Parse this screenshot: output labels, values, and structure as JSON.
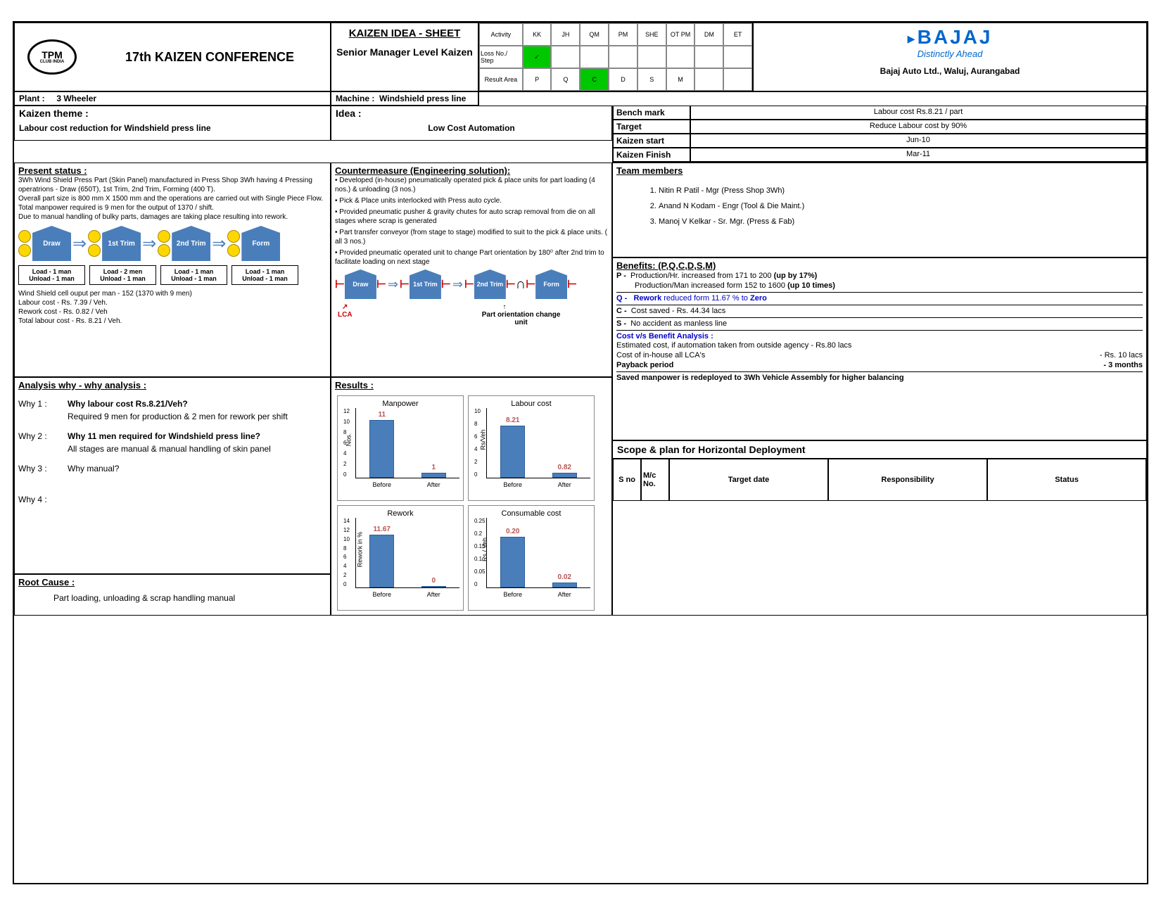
{
  "header": {
    "tpm": {
      "line1": "TPM",
      "line2": "CLUB INDIA"
    },
    "conference": "17th KAIZEN CONFERENCE",
    "sheet_title": "KAIZEN IDEA - SHEET",
    "level": "Senior Manager Level Kaizen",
    "grid": {
      "row1": {
        "label": "Activity",
        "cells": [
          "KK",
          "JH",
          "QM",
          "PM",
          "SHE",
          "OT PM",
          "DM",
          "ET"
        ],
        "highlight": -1
      },
      "row2": {
        "label": "Loss No./ Step",
        "cells": [
          "✓",
          "",
          "",
          "",
          "",
          "",
          "",
          ""
        ],
        "highlight": 0
      },
      "row3": {
        "label": "Result Area",
        "cells": [
          "P",
          "Q",
          "C",
          "D",
          "S",
          "M",
          "",
          ""
        ],
        "highlight": 2
      }
    },
    "company": {
      "logo": "BAJAJ",
      "tag": "Distinctly Ahead",
      "addr": "Bajaj Auto Ltd., Waluj, Aurangabad",
      "logo_color": "#0066cc"
    }
  },
  "info": {
    "plant_lbl": "Plant :",
    "plant": "3 Wheeler",
    "machine_lbl": "Machine :",
    "machine": "Windshield press line",
    "theme_lbl": "Kaizen theme :",
    "theme": "Labour cost reduction for Windshield press line",
    "idea_lbl": "Idea  :",
    "idea": "Low Cost Automation"
  },
  "present": {
    "title": "Present status :",
    "body": "3Wh Wind Shield Press Part (Skin Panel) manufactured in Press Shop 3Wh having 4 Pressing operatrions - Draw (650T), 1st Trim, 2nd Trim, Forming (400 T).\nOverall part size is 800 mm X 1500 mm and the operations are carried out with Single Piece Flow.\nTotal manpower required is 9 men for the output of 1370 / shift.\nDue to manual handling of bulky parts, damages are taking place resulting into rework.",
    "flow": [
      "Draw",
      "1st Trim",
      "2nd Trim",
      "Form"
    ],
    "load": [
      {
        "l": "Load   - 1 man",
        "u": "Unload - 1 man"
      },
      {
        "l": "Load   - 2 men",
        "u": "Unload - 1 man"
      },
      {
        "l": "Load   - 1 man",
        "u": "Unload - 1 man"
      },
      {
        "l": "Load   - 1 man",
        "u": "Unload - 1 man"
      }
    ],
    "footer": {
      "l1": "Wind Shield cell ouput per man - 152 (1370 with 9 men)",
      "l2": "Labour cost        - Rs. 7.39 /  Veh.",
      "l3": "Rework cost       - Rs. 0.82 / Veh",
      "l4": "Total labour cost   - Rs. 8.21 / Veh."
    }
  },
  "analysis": {
    "title": "Analysis why - why analysis :",
    "why1_l": "Why 1 :",
    "why1_q": "Why labour cost Rs.8.21/Veh?",
    "why1_a": "Required 9 men for production & 2 men for rework per shift",
    "why2_l": "Why 2 :",
    "why2_q": "Why 11 men required for Windshield press line?",
    "why2_a": "All stages are manual & manual handling of skin panel",
    "why3_l": "Why 3 :",
    "why3_q": "Why manual?",
    "why4_l": "Why 4 :"
  },
  "root": {
    "title": "Root Cause :",
    "body": "Part loading, unloading & scrap handling manual"
  },
  "counter": {
    "title": "Countermeasure (Engineering solution):",
    "bullets": [
      "• Developed (in-house) pneumatically operated pick & place units for part loading (4 nos.) & unloading (3 nos.)",
      "• Pick & Place units interlocked with Press auto cycle.",
      "• Provided pneumatic pusher & gravity chutes for auto scrap removal from die on all stages where scrap is generated",
      "• Part transfer conveyor (from stage to stage) modified to suit to the pick & place units. ( all 3 nos.)",
      "• Provided pneumatic operated unit to change Part orientation by 180⁰ after 2nd trim to facilitate loading on next stage"
    ],
    "flow": [
      "Draw",
      "1st Trim",
      "2nd Trim",
      "Form"
    ],
    "lca": "LCA",
    "orient": "Part orientation change unit"
  },
  "results": {
    "title": "Results :",
    "charts": [
      {
        "title": "Manpower",
        "ylabel": "Nos.",
        "before": 11,
        "after": 1,
        "before_lbl": "11",
        "after_lbl": "1",
        "ymax": 12,
        "ticks": [
          "0",
          "2",
          "4",
          "6",
          "8",
          "10",
          "12"
        ]
      },
      {
        "title": "Labour cost",
        "ylabel": "Rs/Veh",
        "before": 8.21,
        "after": 0.82,
        "before_lbl": "8.21",
        "after_lbl": "0.82",
        "ymax": 10,
        "ticks": [
          "0",
          "2",
          "4",
          "6",
          "8",
          "10"
        ]
      },
      {
        "title": "Rework",
        "ylabel": "Rework in %",
        "before": 11.67,
        "after": 0,
        "before_lbl": "11.67",
        "after_lbl": "0",
        "ymax": 14,
        "ticks": [
          "0",
          "2",
          "4",
          "6",
          "8",
          "10",
          "12",
          "14"
        ]
      },
      {
        "title": "Consumable cost",
        "ylabel": "Rs / Veh",
        "before": 0.2,
        "after": 0.02,
        "before_lbl": "0.20",
        "after_lbl": "0.02",
        "ymax": 0.25,
        "ticks": [
          "0",
          "0.05",
          "0.1",
          "0.15",
          "0.2",
          "0.25"
        ]
      }
    ],
    "bar_color": "#4a7ebb",
    "xlabels": [
      "Before",
      "After"
    ]
  },
  "targets": {
    "bench_l": "Bench mark",
    "bench_v": "Labour cost Rs.8.21 / part",
    "target_l": "Target",
    "target_v": "Reduce Labour cost by 90%",
    "start_l": "Kaizen start",
    "start_v": "Jun-10",
    "finish_l": "Kaizen Finish",
    "finish_v": "Mar-11"
  },
  "team": {
    "title": "Team members",
    "members": [
      "Nitin R Patil - Mgr (Press Shop 3Wh)",
      "Anand N Kodam - Engr (Tool & Die Maint.)",
      "Manoj V Kelkar - Sr. Mgr. (Press & Fab)"
    ]
  },
  "benefits": {
    "title": "Benefits: (P,Q,C,D,S,M)",
    "p1": "Production/Hr. increased from 171 to 200",
    "p1b": "(up by 17%)",
    "p2": "Production/Man increased form 152 to 1600",
    "p2b": "(up 10 times)",
    "q": "reduced form 11.67 % to",
    "qb": "Zero",
    "qlbl": "Rework",
    "c": "Cost saved - Rs. 44.34 lacs",
    "s": "No accident as manless line",
    "cba_title": "Cost v/s Benefit Analysis :",
    "cba1": "Estimated cost, if automation taken from outside agency - Rs.80 lacs",
    "cba2": "Cost of in-house all LCA's",
    "cba2v": "- Rs. 10 lacs",
    "cba3": "Payback period",
    "cba3v": "- 3 months",
    "note": "Saved manpower is redeployed to 3Wh Vehicle Assembly for higher balancing"
  },
  "scope": {
    "title": "Scope & plan for Horizontal Deployment",
    "cols": [
      "S no",
      "M/c No.",
      "Target date",
      "Responsibility",
      "Status"
    ]
  }
}
